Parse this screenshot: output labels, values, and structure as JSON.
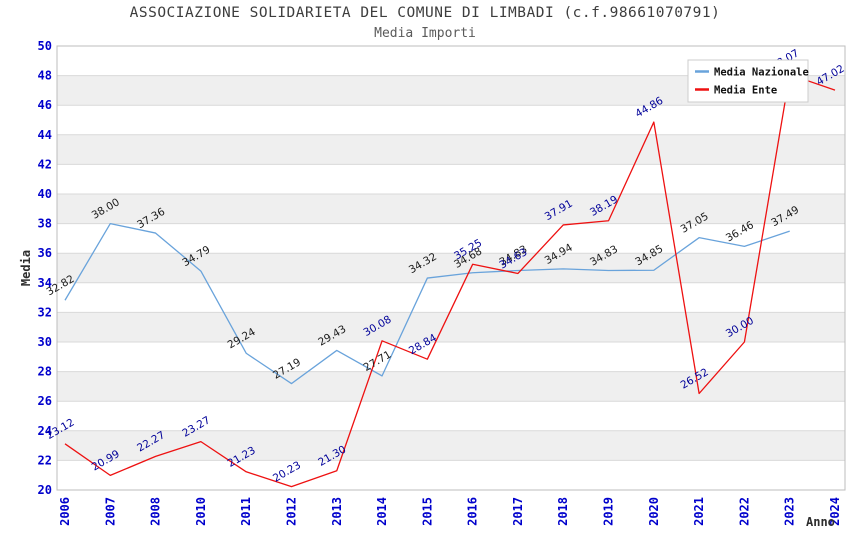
{
  "header": {
    "title": "ASSOCIAZIONE SOLIDARIETA DEL COMUNE DI LIMBADI (c.f.98661070791)",
    "subtitle": "Media Importi"
  },
  "legend": {
    "items": [
      {
        "label": "Media Nazionale",
        "color": "#69a3db"
      },
      {
        "label": "Media Ente",
        "color": "#ee1111"
      }
    ]
  },
  "axes": {
    "y_label": "Media",
    "x_label": "Anno"
  },
  "colors": {
    "band": "#efefef",
    "gridline": "#d9d9d9",
    "plot_border": "#bdbdbd",
    "tick_blue": "#0000cc"
  },
  "chart_data": {
    "type": "line",
    "title": "ASSOCIAZIONE SOLIDARIETA DEL COMUNE DI LIMBADI (c.f.98661070791)",
    "subtitle": "Media Importi",
    "xlabel": "Anno",
    "ylabel": "Media",
    "ylim": [
      20,
      50
    ],
    "y_step": 2,
    "grid": "horizontal-bands",
    "legend_position": "top-right",
    "categories": [
      "2006",
      "2007",
      "2008",
      "2010",
      "2011",
      "2012",
      "2013",
      "2014",
      "2015",
      "2016",
      "2017",
      "2018",
      "2019",
      "2020",
      "2021",
      "2022",
      "2023",
      "2024"
    ],
    "series": [
      {
        "name": "Media Nazionale",
        "color": "#69a3db",
        "label_color": "#1a1a1a",
        "values": [
          32.82,
          38.0,
          37.36,
          34.79,
          29.24,
          27.19,
          29.43,
          27.71,
          34.32,
          34.68,
          34.83,
          34.94,
          34.83,
          34.85,
          37.05,
          36.46,
          37.49,
          null
        ]
      },
      {
        "name": "Media Ente",
        "color": "#ee1111",
        "label_color": "#000099",
        "values": [
          23.12,
          20.99,
          22.27,
          23.27,
          21.23,
          20.23,
          21.3,
          30.08,
          28.84,
          35.25,
          34.63,
          37.91,
          38.19,
          44.86,
          26.52,
          30.0,
          48.07,
          47.02
        ]
      }
    ]
  }
}
